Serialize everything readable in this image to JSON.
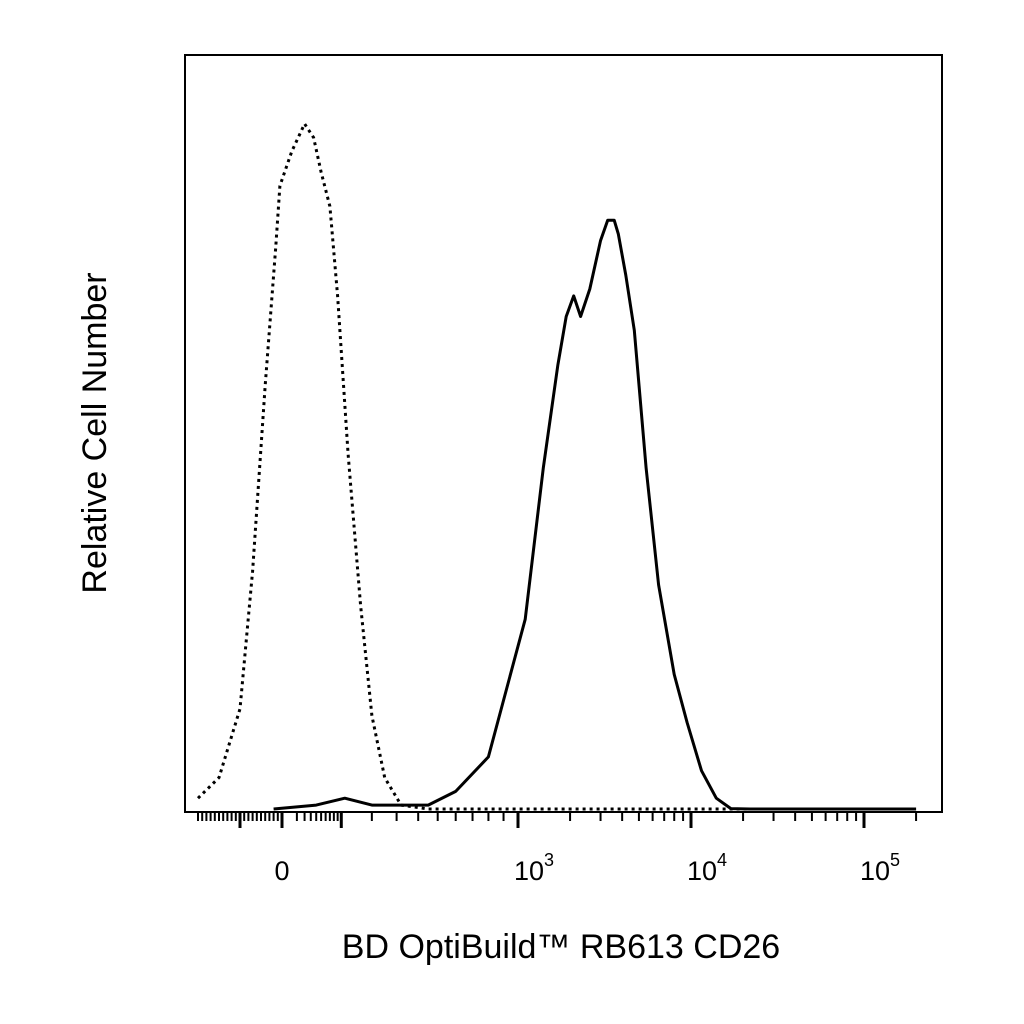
{
  "chart_data": {
    "type": "line",
    "title": "",
    "xlabel": "BD OptiBuild™ RB613 CD26",
    "ylabel": "Relative Cell Number",
    "x_scale": "biexponential",
    "xlim": [
      -200,
      200000
    ],
    "ylim": [
      0,
      1.1
    ],
    "x_ticks": [
      {
        "value": 0,
        "base": "0",
        "exp": ""
      },
      {
        "value": 1000,
        "base": "10",
        "exp": "3"
      },
      {
        "value": 10000,
        "base": "10",
        "exp": "4"
      },
      {
        "value": 100000,
        "base": "10",
        "exp": "5"
      }
    ],
    "grid": false,
    "legend": "none",
    "series": [
      {
        "style": "dotted",
        "color": "#000000",
        "points": [
          [
            -200,
            0.02
          ],
          [
            -150,
            0.05
          ],
          [
            -100,
            0.15
          ],
          [
            -70,
            0.35
          ],
          [
            -40,
            0.62
          ],
          [
            -15,
            0.82
          ],
          [
            -5,
            0.91
          ],
          [
            5,
            0.96
          ],
          [
            20,
            1.0
          ],
          [
            35,
            0.98
          ],
          [
            50,
            0.93
          ],
          [
            70,
            0.88
          ],
          [
            90,
            0.75
          ],
          [
            120,
            0.52
          ],
          [
            160,
            0.3
          ],
          [
            200,
            0.14
          ],
          [
            250,
            0.05
          ],
          [
            320,
            0.01
          ],
          [
            450,
            0.0
          ],
          [
            1000,
            0.0
          ],
          [
            10000,
            0.0
          ],
          [
            200000,
            0.0
          ]
        ]
      },
      {
        "style": "solid",
        "color": "#000000",
        "points": [
          [
            -20,
            0.0
          ],
          [
            40,
            0.01
          ],
          [
            110,
            0.02
          ],
          [
            200,
            0.01
          ],
          [
            320,
            0.01
          ],
          [
            450,
            0.01
          ],
          [
            600,
            0.03
          ],
          [
            800,
            0.08
          ],
          [
            1100,
            0.28
          ],
          [
            1400,
            0.5
          ],
          [
            1700,
            0.65
          ],
          [
            1900,
            0.72
          ],
          [
            2100,
            0.75
          ],
          [
            2300,
            0.72
          ],
          [
            2600,
            0.76
          ],
          [
            3000,
            0.83
          ],
          [
            3300,
            0.86
          ],
          [
            3600,
            0.86
          ],
          [
            3800,
            0.84
          ],
          [
            4200,
            0.78
          ],
          [
            4700,
            0.7
          ],
          [
            5500,
            0.5
          ],
          [
            6500,
            0.33
          ],
          [
            8000,
            0.2
          ],
          [
            9500,
            0.13
          ],
          [
            11500,
            0.06
          ],
          [
            14000,
            0.02
          ],
          [
            17000,
            0.005
          ],
          [
            22000,
            0.0
          ],
          [
            200000,
            0.0
          ]
        ]
      }
    ]
  }
}
